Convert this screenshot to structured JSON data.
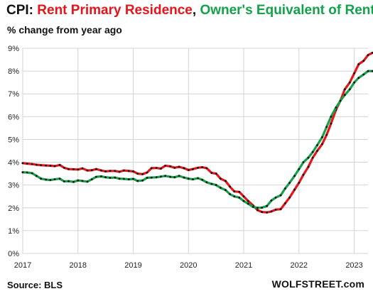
{
  "header": {
    "prefix": "CPI: ",
    "series1_title": "Rent Primary  Residence",
    "separator": ", ",
    "series2_title": "Owner's Equivalent of Rent",
    "subtitle": "% change from year ago"
  },
  "footer": {
    "source": "Source: BLS",
    "brand": "WOLFSTREET.com"
  },
  "chart_data": {
    "type": "line",
    "xlim": [
      2017.0,
      2023.25
    ],
    "ylim": [
      0,
      9
    ],
    "ylabel_unit": "%",
    "y_ticks": [
      0,
      1,
      2,
      3,
      4,
      5,
      6,
      7,
      8,
      9
    ],
    "y_tick_labels": [
      "0%",
      "1%",
      "2%",
      "3%",
      "4%",
      "5%",
      "6%",
      "7%",
      "8%",
      "9%"
    ],
    "x_ticks": [
      2017,
      2018,
      2019,
      2020,
      2021,
      2022,
      2023
    ],
    "x_tick_labels": [
      "2017",
      "2018",
      "2019",
      "2020",
      "2021",
      "2022",
      "2023"
    ],
    "grid": true,
    "markers": "black dots at each monthly point",
    "series": [
      {
        "key": "rent",
        "color": "#e8141a",
        "points": [
          [
            2017.0,
            3.96
          ],
          [
            2017.08,
            3.94
          ],
          [
            2017.17,
            3.92
          ],
          [
            2017.25,
            3.89
          ],
          [
            2017.33,
            3.87
          ],
          [
            2017.42,
            3.86
          ],
          [
            2017.5,
            3.85
          ],
          [
            2017.58,
            3.83
          ],
          [
            2017.67,
            3.88
          ],
          [
            2017.75,
            3.76
          ],
          [
            2017.83,
            3.7
          ],
          [
            2017.92,
            3.69
          ],
          [
            2018.0,
            3.68
          ],
          [
            2018.08,
            3.73
          ],
          [
            2018.17,
            3.64
          ],
          [
            2018.25,
            3.65
          ],
          [
            2018.33,
            3.7
          ],
          [
            2018.42,
            3.64
          ],
          [
            2018.5,
            3.6
          ],
          [
            2018.58,
            3.62
          ],
          [
            2018.67,
            3.62
          ],
          [
            2018.75,
            3.58
          ],
          [
            2018.83,
            3.64
          ],
          [
            2018.92,
            3.62
          ],
          [
            2019.0,
            3.6
          ],
          [
            2019.08,
            3.5
          ],
          [
            2019.17,
            3.48
          ],
          [
            2019.25,
            3.55
          ],
          [
            2019.33,
            3.74
          ],
          [
            2019.42,
            3.75
          ],
          [
            2019.5,
            3.72
          ],
          [
            2019.58,
            3.85
          ],
          [
            2019.67,
            3.82
          ],
          [
            2019.75,
            3.76
          ],
          [
            2019.83,
            3.8
          ],
          [
            2019.92,
            3.74
          ],
          [
            2020.0,
            3.66
          ],
          [
            2020.08,
            3.7
          ],
          [
            2020.17,
            3.76
          ],
          [
            2020.25,
            3.78
          ],
          [
            2020.33,
            3.74
          ],
          [
            2020.42,
            3.53
          ],
          [
            2020.5,
            3.5
          ],
          [
            2020.58,
            3.28
          ],
          [
            2020.67,
            3.18
          ],
          [
            2020.75,
            2.93
          ],
          [
            2020.83,
            2.72
          ],
          [
            2020.92,
            2.7
          ],
          [
            2021.0,
            2.5
          ],
          [
            2021.08,
            2.3
          ],
          [
            2021.17,
            2.1
          ],
          [
            2021.25,
            1.9
          ],
          [
            2021.33,
            1.82
          ],
          [
            2021.42,
            1.8
          ],
          [
            2021.5,
            1.84
          ],
          [
            2021.58,
            1.92
          ],
          [
            2021.67,
            1.94
          ],
          [
            2021.75,
            2.2
          ],
          [
            2021.83,
            2.45
          ],
          [
            2021.92,
            2.8
          ],
          [
            2022.0,
            3.1
          ],
          [
            2022.08,
            3.45
          ],
          [
            2022.17,
            3.8
          ],
          [
            2022.25,
            4.2
          ],
          [
            2022.33,
            4.5
          ],
          [
            2022.42,
            4.8
          ],
          [
            2022.5,
            5.2
          ],
          [
            2022.58,
            5.7
          ],
          [
            2022.67,
            6.3
          ],
          [
            2022.75,
            6.7
          ],
          [
            2022.83,
            7.2
          ],
          [
            2022.92,
            7.5
          ],
          [
            2023.0,
            7.9
          ],
          [
            2023.08,
            8.3
          ],
          [
            2023.17,
            8.45
          ],
          [
            2023.25,
            8.7
          ],
          [
            2023.33,
            8.8
          ]
        ]
      },
      {
        "key": "oer",
        "color": "#13a24a",
        "points": [
          [
            2017.0,
            3.56
          ],
          [
            2017.08,
            3.55
          ],
          [
            2017.17,
            3.52
          ],
          [
            2017.25,
            3.4
          ],
          [
            2017.33,
            3.28
          ],
          [
            2017.42,
            3.24
          ],
          [
            2017.5,
            3.22
          ],
          [
            2017.58,
            3.25
          ],
          [
            2017.67,
            3.28
          ],
          [
            2017.75,
            3.16
          ],
          [
            2017.83,
            3.17
          ],
          [
            2017.92,
            3.14
          ],
          [
            2018.0,
            3.2
          ],
          [
            2018.08,
            3.18
          ],
          [
            2018.17,
            3.15
          ],
          [
            2018.25,
            3.25
          ],
          [
            2018.33,
            3.36
          ],
          [
            2018.42,
            3.38
          ],
          [
            2018.5,
            3.34
          ],
          [
            2018.58,
            3.32
          ],
          [
            2018.67,
            3.33
          ],
          [
            2018.75,
            3.28
          ],
          [
            2018.83,
            3.27
          ],
          [
            2018.92,
            3.25
          ],
          [
            2019.0,
            3.27
          ],
          [
            2019.08,
            3.18
          ],
          [
            2019.17,
            3.2
          ],
          [
            2019.25,
            3.32
          ],
          [
            2019.33,
            3.33
          ],
          [
            2019.42,
            3.34
          ],
          [
            2019.5,
            3.37
          ],
          [
            2019.58,
            3.4
          ],
          [
            2019.67,
            3.36
          ],
          [
            2019.75,
            3.34
          ],
          [
            2019.83,
            3.4
          ],
          [
            2019.92,
            3.33
          ],
          [
            2020.0,
            3.28
          ],
          [
            2020.08,
            3.25
          ],
          [
            2020.17,
            3.3
          ],
          [
            2020.25,
            3.23
          ],
          [
            2020.33,
            3.12
          ],
          [
            2020.42,
            3.05
          ],
          [
            2020.5,
            3.0
          ],
          [
            2020.58,
            2.88
          ],
          [
            2020.67,
            2.78
          ],
          [
            2020.75,
            2.6
          ],
          [
            2020.83,
            2.5
          ],
          [
            2020.92,
            2.45
          ],
          [
            2021.0,
            2.3
          ],
          [
            2021.08,
            2.18
          ],
          [
            2021.17,
            2.04
          ],
          [
            2021.25,
            2.0
          ],
          [
            2021.33,
            2.01
          ],
          [
            2021.42,
            2.08
          ],
          [
            2021.5,
            2.32
          ],
          [
            2021.58,
            2.45
          ],
          [
            2021.67,
            2.55
          ],
          [
            2021.75,
            2.85
          ],
          [
            2021.83,
            3.1
          ],
          [
            2021.92,
            3.4
          ],
          [
            2022.0,
            3.7
          ],
          [
            2022.08,
            4.0
          ],
          [
            2022.17,
            4.2
          ],
          [
            2022.25,
            4.45
          ],
          [
            2022.33,
            4.75
          ],
          [
            2022.42,
            5.1
          ],
          [
            2022.5,
            5.55
          ],
          [
            2022.58,
            6.0
          ],
          [
            2022.67,
            6.4
          ],
          [
            2022.75,
            6.7
          ],
          [
            2022.83,
            6.95
          ],
          [
            2022.92,
            7.2
          ],
          [
            2023.0,
            7.5
          ],
          [
            2023.08,
            7.7
          ],
          [
            2023.17,
            7.85
          ],
          [
            2023.25,
            8.0
          ],
          [
            2023.33,
            8.0
          ]
        ]
      }
    ]
  }
}
